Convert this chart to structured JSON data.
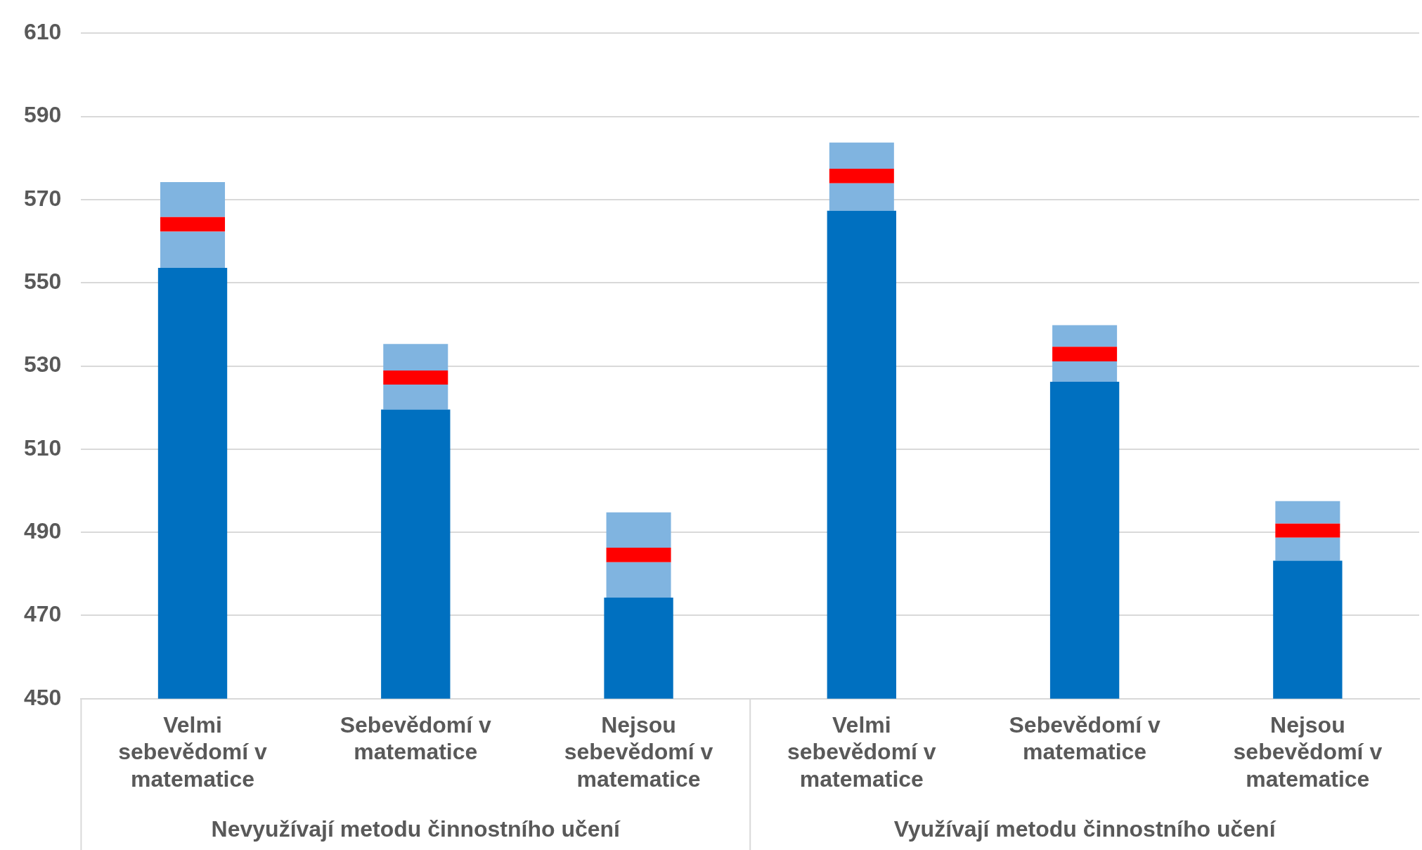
{
  "chart_data": {
    "type": "bar",
    "categories": [
      "Velmi sebevědomí v matematice",
      "Sebevědomí v matematice",
      "Nejsou sebevědomí v matematice",
      "Velmi sebevědomí v matematice",
      "Sebevědomí v matematice",
      "Nejsou sebevědomí v matematice"
    ],
    "series": [
      {
        "color": "#0070c0",
        "values": [
          553.6,
          519.5,
          474.3,
          567.3,
          526.2,
          483.2
        ]
      },
      {
        "color": "#80b4e0",
        "base": [
          553.6,
          519.5,
          474.3,
          567.3,
          526.2,
          483.2
        ],
        "values": [
          8.7,
          6.0,
          8.5,
          6.6,
          4.9,
          5.5
        ]
      },
      {
        "color": "#ff0000",
        "base": [
          562.3,
          525.5,
          482.8,
          573.9,
          531.1,
          488.7
        ],
        "values": [
          3.5,
          3.4,
          3.5,
          3.5,
          3.5,
          3.4
        ]
      },
      {
        "color": "#80b4e0",
        "base": [
          565.8,
          528.9,
          486.3,
          577.4,
          534.6,
          492.1
        ],
        "values": [
          8.4,
          6.4,
          8.5,
          6.3,
          5.2,
          5.4
        ]
      }
    ],
    "ylim": [
      450,
      610
    ],
    "yticks": [
      450,
      470,
      490,
      510,
      530,
      550,
      570,
      590,
      610
    ],
    "grid": "y",
    "legend": false,
    "annotations": [
      "Nevyužívají metodu činnostního učení",
      "Využívají metodu činnostního učení"
    ]
  }
}
